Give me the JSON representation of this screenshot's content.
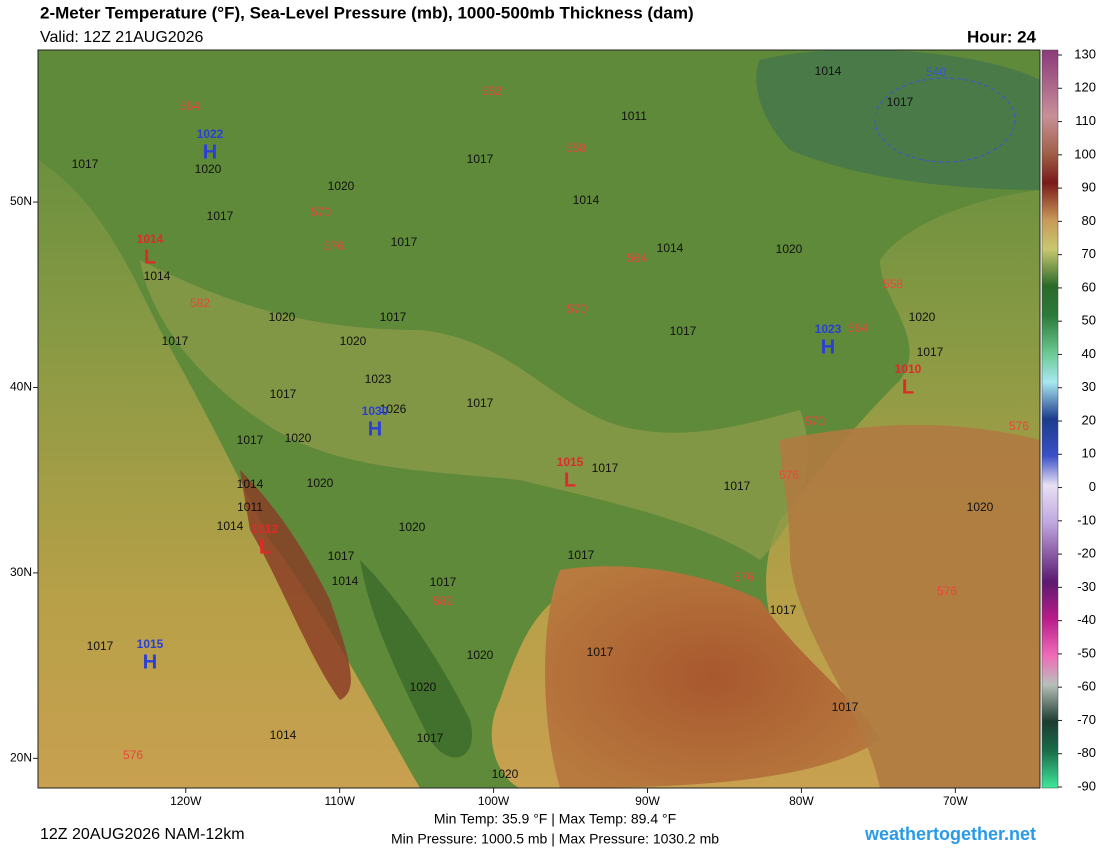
{
  "header": {
    "title": "2-Meter Temperature (°F), Sea-Level Pressure (mb), 1000-500mb Thickness (dam)",
    "valid": "Valid: 12Z 21AUG2026",
    "hour": "Hour: 24"
  },
  "colorbar": {
    "lim": [
      -90,
      130
    ],
    "ticks": [
      130,
      120,
      110,
      100,
      90,
      80,
      70,
      60,
      50,
      40,
      30,
      20,
      10,
      0,
      -10,
      -20,
      -30,
      -40,
      -50,
      -60,
      -70,
      -80,
      -90
    ]
  },
  "map": {
    "xlim": [
      -129.6,
      -64.5
    ],
    "ylim": [
      18.4,
      58.2
    ],
    "xticks": [
      {
        "value": -120,
        "label": "120W"
      },
      {
        "value": -110,
        "label": "110W"
      },
      {
        "value": -100,
        "label": "100W"
      },
      {
        "value": -90,
        "label": "90W"
      },
      {
        "value": -80,
        "label": "80W"
      },
      {
        "value": -70,
        "label": "70W"
      }
    ],
    "yticks": [
      {
        "value": 50,
        "label": "50N"
      },
      {
        "value": 40,
        "label": "40N"
      },
      {
        "value": 30,
        "label": "30N"
      },
      {
        "value": 20,
        "label": "20N"
      }
    ],
    "isobars": {
      "color": "#111111",
      "values": [
        1014,
        1017,
        1011,
        1017,
        1014,
        1020,
        1017,
        1017,
        1014,
        1020,
        1017,
        1020,
        1014,
        1020,
        1017,
        1020,
        1017,
        1017,
        1020,
        1017,
        1023,
        1026,
        1017,
        1017,
        1017,
        1020,
        1017,
        1014,
        1020,
        1017,
        1014,
        1020,
        1017,
        1017,
        1014,
        1017,
        1017,
        1017,
        1020,
        1020,
        1017,
        1017,
        1014,
        1017,
        1020,
        1020,
        1011
      ]
    },
    "thickness": {
      "color": "#e8473a",
      "values": [
        564,
        552,
        558,
        570,
        576,
        564,
        558,
        582,
        570,
        564,
        570,
        576,
        576,
        582,
        576,
        576,
        576
      ]
    },
    "thickness_cold": {
      "color": "#3a55d8",
      "values": [
        540
      ]
    },
    "centers": [
      {
        "letter": "H",
        "value": 1022,
        "color": "#2a3fd6"
      },
      {
        "letter": "L",
        "value": 1014,
        "color": "#e02a2a"
      },
      {
        "letter": "H",
        "value": 1030,
        "color": "#2a3fd6"
      },
      {
        "letter": "L",
        "value": 1015,
        "color": "#e02a2a"
      },
      {
        "letter": "L",
        "value": 1012,
        "color": "#e02a2a"
      },
      {
        "letter": "H",
        "value": 1023,
        "color": "#2a3fd6"
      },
      {
        "letter": "L",
        "value": 1010,
        "color": "#e02a2a"
      },
      {
        "letter": "H",
        "value": 1015,
        "color": "#2a3fd6"
      }
    ]
  },
  "footer": {
    "run": "12Z 20AUG2026 NAM-12km",
    "temps": "Min Temp:  35.9 °F | Max Temp:  89.4 °F",
    "pressures": "Min Pressure: 1000.5 mb | Max Pressure: 1030.2 mb",
    "site": "weathertogether.net"
  }
}
